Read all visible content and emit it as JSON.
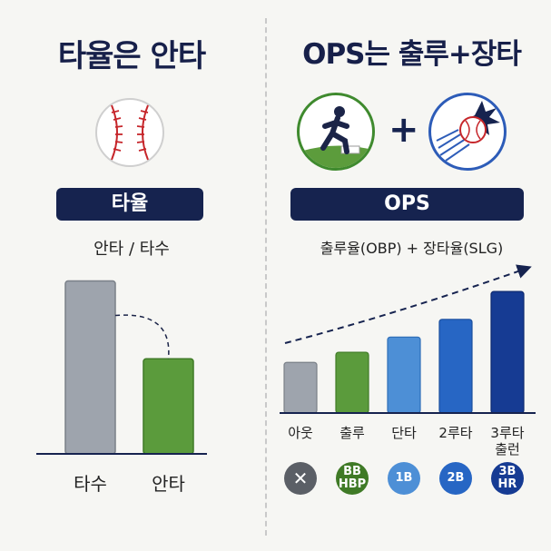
{
  "left": {
    "title": "타율은 안타",
    "pill_label": "타율",
    "formula": "안타 / 타수"
  },
  "right": {
    "title": "OPS는 출루+장타",
    "plus_sign": "+",
    "pill_label": "OPS",
    "formula": "출루율(OBP) + 장타율(SLG)"
  },
  "icons": {
    "baseball": "baseball-icon",
    "runner": "runner-icon",
    "hit": "baseball-hit-icon"
  },
  "colors": {
    "navy": "#16234f",
    "gray": "#9ea4ad",
    "green": "#5b9b3c",
    "blue_light": "#4d8fd6",
    "blue_mid": "#2766c4",
    "blue_dark": "#163b93"
  },
  "chart_data": [
    {
      "type": "bar",
      "categories": [
        "타수",
        "안타"
      ],
      "values": [
        10,
        5.5
      ],
      "ylim": [
        0,
        10.5
      ]
    },
    {
      "type": "bar",
      "categories": [
        "아웃",
        "출루",
        "단타",
        "2루타",
        "3루타 출런"
      ],
      "values": [
        1,
        1.2,
        1.5,
        1.85,
        2.4
      ],
      "ylim": [
        0,
        2.6
      ],
      "badges": [
        "✕",
        "BB HBP",
        "1B",
        "2B",
        "3B HR"
      ]
    }
  ]
}
